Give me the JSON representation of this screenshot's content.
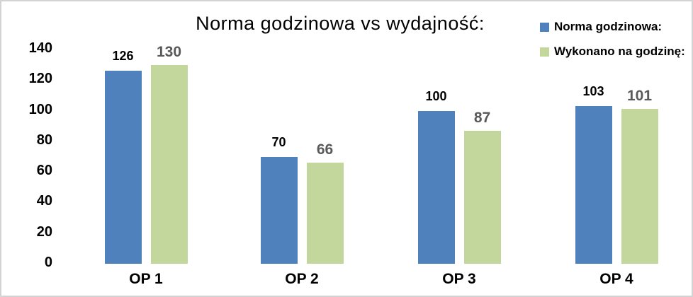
{
  "chart_data": {
    "type": "bar",
    "title": "Norma godzinowa vs wydajność:",
    "categories": [
      "OP 1",
      "OP 2",
      "OP 3",
      "OP 4"
    ],
    "series": [
      {
        "name": "Norma godzinowa:",
        "values": [
          126,
          70,
          100,
          103
        ],
        "color": "#4F81BD",
        "label_color": "#000000"
      },
      {
        "name": "Wykonano na godzinę:",
        "values": [
          130,
          66,
          87,
          101
        ],
        "color": "#C3D69B",
        "label_color": "#595959"
      }
    ],
    "yticks": [
      0,
      20,
      40,
      60,
      80,
      100,
      120,
      140
    ],
    "ylim": [
      0,
      140
    ],
    "grid": false,
    "axis_lines": false,
    "data_labels": "outside-end",
    "legend_position": "top-right",
    "xlabel": "",
    "ylabel": ""
  },
  "colors": {
    "figure_border": "#d3d3d3",
    "background": "#ffffff"
  }
}
